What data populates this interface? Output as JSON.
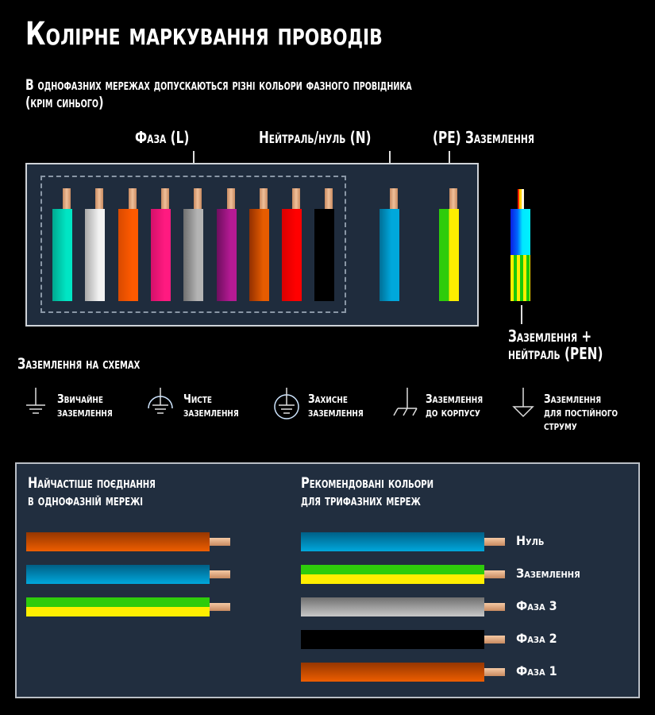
{
  "title": "Колірне маркування проводів",
  "subtitle_line1": "В однофазних мережах допускаються різні кольори фазного провідника",
  "subtitle_line2": "(крім синього)",
  "labels": {
    "phase": "Фаза (L)",
    "neutral": "Нейтраль/нуль (N)",
    "earth": "(PE) Заземлення",
    "pen_line1": "Заземлення +",
    "pen_line2": "нейтраль (PEN)"
  },
  "phase_wires": [
    {
      "name": "turquoise",
      "color": "#00e5c4",
      "shade": "#00a98f"
    },
    {
      "name": "white",
      "color": "#f2f2f2",
      "shade": "#a8a8a8"
    },
    {
      "name": "orange",
      "color": "#ff5a00",
      "shade": "#d84a00"
    },
    {
      "name": "pink",
      "color": "#ff1a80",
      "shade": "#d4106a"
    },
    {
      "name": "gray",
      "color": "#b4b4b4",
      "shade": "#6f6f6f"
    },
    {
      "name": "violet",
      "color": "#b51a94",
      "shade": "#6e0e5e"
    },
    {
      "name": "brown-orange",
      "color": "#e65c00",
      "shade": "#933000"
    },
    {
      "name": "red",
      "color": "#ff0000",
      "shade": "#d80000"
    },
    {
      "name": "black",
      "color": "#000000",
      "shade": "#000000"
    }
  ],
  "neutral_wire": {
    "color": "#00a8dc",
    "shade": "#006e96"
  },
  "earth_wire": {
    "colors": [
      "#2ecc0b",
      "#ffee00"
    ]
  },
  "grounding_section": {
    "heading": "Заземлення на схемах",
    "symbols": [
      {
        "icon": "ground-icon",
        "line1": "Звичайне",
        "line2": "заземлення",
        "line3": ""
      },
      {
        "icon": "clean-ground-icon",
        "line1": "Чисте",
        "line2": "заземлення",
        "line3": ""
      },
      {
        "icon": "protective-ground-icon",
        "line1": "Захисне",
        "line2": "заземлення",
        "line3": ""
      },
      {
        "icon": "chassis-ground-icon",
        "line1": "Заземлення",
        "line2": "до корпусу",
        "line3": ""
      },
      {
        "icon": "dc-ground-icon",
        "line1": "Заземлення",
        "line2": "для постійного",
        "line3": "струму"
      }
    ]
  },
  "single_phase": {
    "heading_line1": "Найчастіше поєднання",
    "heading_line2": "в однофазній мережі",
    "wires": [
      {
        "name": "phase-brown",
        "top": "#953600",
        "bottom": "#ee5e00"
      },
      {
        "name": "neutral-blue",
        "top": "#005f86",
        "bottom": "#00a8dc"
      },
      {
        "name": "earth-green-yellow",
        "top": "#2ecc0b",
        "bottom": "#ffee00"
      }
    ]
  },
  "three_phase": {
    "heading_line1": "Рекомендовані кольори",
    "heading_line2": "для трифазних мереж",
    "wires": [
      {
        "label": "Нуль",
        "top": "#005f86",
        "bottom": "#00a8dc"
      },
      {
        "label": "Заземлення",
        "top": "#2ecc0b",
        "bottom": "#ffee00"
      },
      {
        "label": "Фаза 3",
        "top": "#6f6f6f",
        "bottom": "#c8c8c8"
      },
      {
        "label": "Фаза 2",
        "top": "#000000",
        "bottom": "#000000"
      },
      {
        "label": "Фаза 1",
        "top": "#953600",
        "bottom": "#ee5e00"
      }
    ]
  },
  "colors": {
    "background": "#000000",
    "panel": "#1f2c3d",
    "panel_border": "#cfd3d8",
    "copper": "#e8b08a"
  }
}
